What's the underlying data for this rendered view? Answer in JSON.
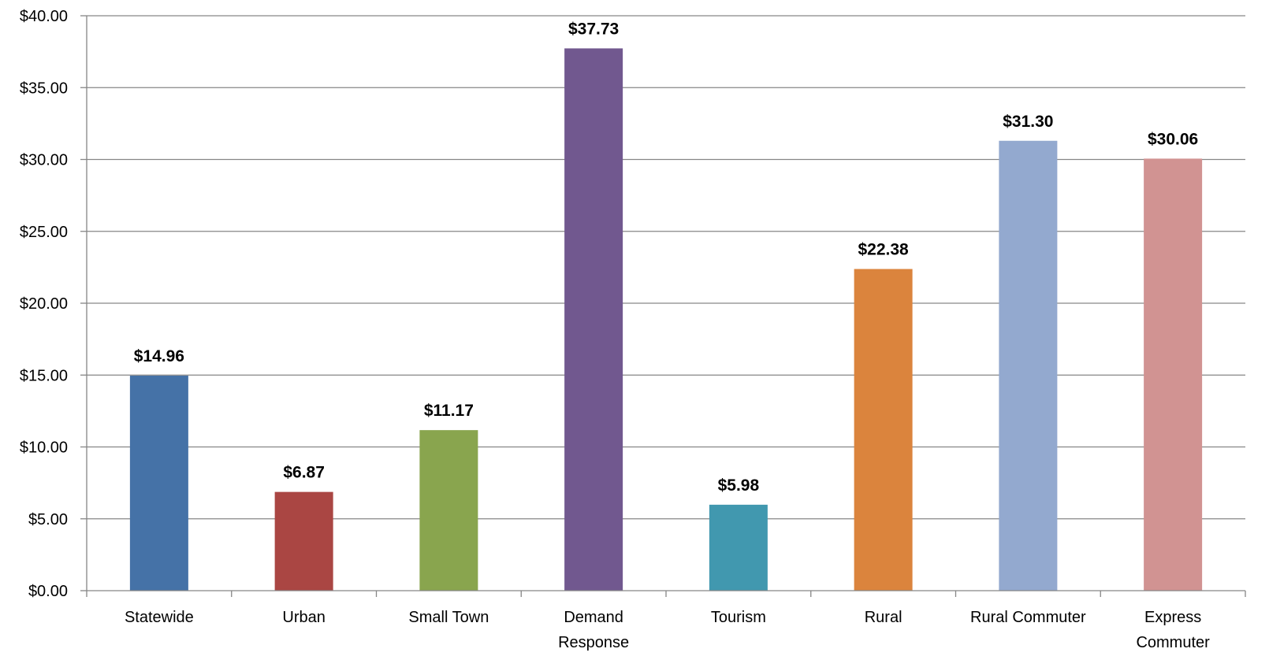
{
  "chart_data": {
    "type": "bar",
    "title": "",
    "xlabel": "",
    "ylabel": "",
    "categories": [
      [
        "Statewide"
      ],
      [
        "Urban"
      ],
      [
        "Small Town"
      ],
      [
        "Demand",
        "Response"
      ],
      [
        "Tourism"
      ],
      [
        "Rural"
      ],
      [
        "Rural Commuter"
      ],
      [
        "Express",
        "Commuter"
      ]
    ],
    "values": [
      14.96,
      6.87,
      11.17,
      37.73,
      5.98,
      22.38,
      31.3,
      30.06
    ],
    "data_labels": [
      "$14.96",
      "$6.87",
      "$11.17",
      "$37.73",
      "$5.98",
      "$22.38",
      "$31.30",
      "$30.06"
    ],
    "bar_colors": [
      "#4572A7",
      "#AA4643",
      "#89A54E",
      "#71588F",
      "#4198AF",
      "#DB843D",
      "#93A9CF",
      "#D19392"
    ],
    "ylim": [
      0,
      40
    ],
    "yticks": [
      0,
      5,
      10,
      15,
      20,
      25,
      30,
      35,
      40
    ],
    "ytick_labels": [
      "$0.00",
      "$5.00",
      "$10.00",
      "$15.00",
      "$20.00",
      "$25.00",
      "$30.00",
      "$35.00",
      "$40.00"
    ],
    "grid": true,
    "gridline_color": "#868686",
    "legend": "none"
  }
}
